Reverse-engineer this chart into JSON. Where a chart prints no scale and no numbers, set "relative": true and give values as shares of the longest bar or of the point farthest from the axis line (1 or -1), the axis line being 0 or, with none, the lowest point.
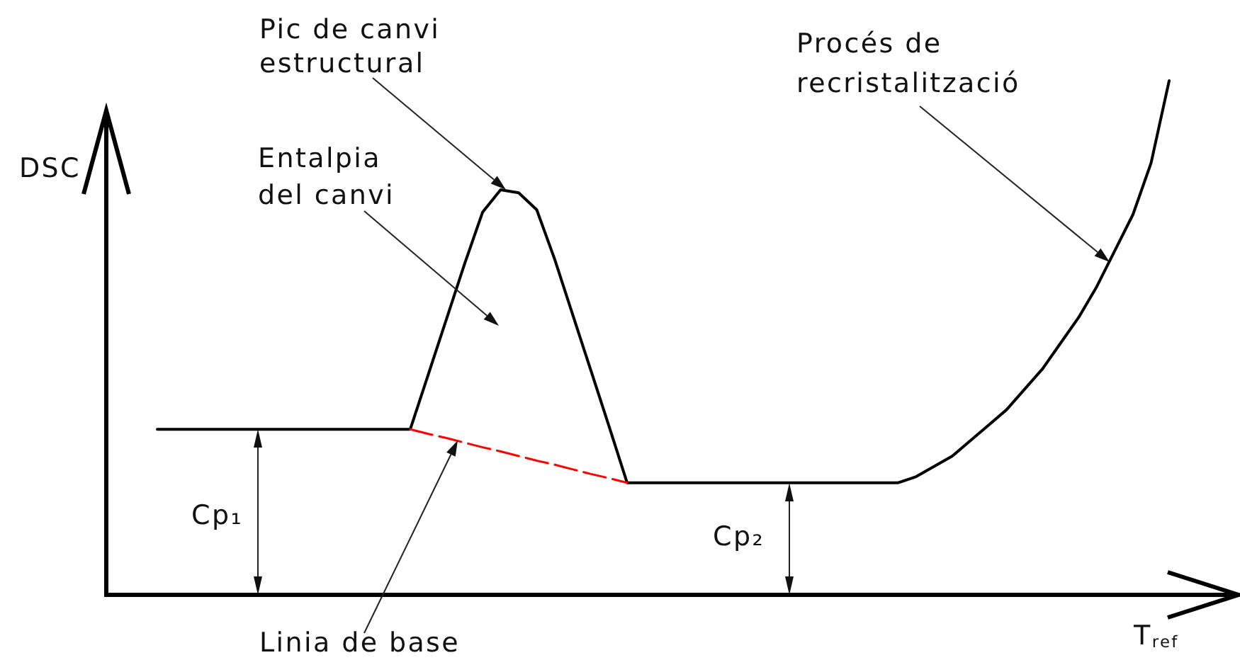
{
  "chart_data": {
    "type": "line",
    "relative": true,
    "xlabel": "T$_{ref}$",
    "ylabel": "DSC",
    "categories": [
      null,
      null,
      null,
      null,
      null,
      null,
      null,
      null,
      null,
      null,
      null,
      null,
      null,
      null,
      null,
      null,
      null,
      null,
      null,
      null,
      null,
      null,
      null,
      null,
      null,
      null,
      null,
      null,
      null,
      null,
      null,
      null,
      null,
      null,
      null,
      null,
      null,
      null,
      null,
      null,
      null,
      null,
      null,
      null,
      null,
      null,
      null,
      null,
      null,
      null,
      null,
      null,
      null,
      null,
      null,
      null,
      null
    ],
    "series": [
      {
        "color": "#000000",
        "values": [
          0.322,
          0.322,
          0.322,
          0.322,
          0.322,
          0.322,
          0.322,
          0.322,
          0.322,
          0.322,
          0.322,
          0.322,
          0.322,
          0.322,
          0.322,
          0.429,
          0.536,
          0.643,
          0.744,
          0.788,
          0.782,
          0.749,
          0.652,
          0.544,
          0.436,
          0.328,
          0.218,
          0.218,
          0.218,
          0.218,
          0.218,
          0.218,
          0.218,
          0.218,
          0.218,
          0.218,
          0.218,
          0.218,
          0.218,
          0.218,
          0.218,
          0.218,
          0.23,
          0.25,
          0.27,
          0.3,
          0.33,
          0.36,
          0.4,
          0.44,
          0.49,
          0.54,
          0.6,
          0.67,
          0.74,
          0.84,
          1
        ]
      },
      {
        "color": "#ff0000",
        "line_style": "dashed",
        "values": [
          null,
          null,
          null,
          null,
          null,
          null,
          null,
          null,
          null,
          null,
          null,
          null,
          null,
          null,
          0.322,
          0.313,
          0.305,
          0.296,
          0.287,
          0.279,
          0.27,
          0.261,
          0.253,
          0.244,
          0.235,
          0.227,
          0.218,
          null,
          null,
          null,
          null,
          null,
          null,
          null,
          null,
          null,
          null,
          null,
          null,
          null,
          null,
          null,
          null,
          null,
          null,
          null,
          null,
          null,
          null,
          null,
          null,
          null,
          null,
          null,
          null,
          null,
          null
        ]
      }
    ],
    "annotations": [
      "Pic de canvi\nestructural",
      "Entalpia\ndel canvi",
      "Procés de\nrecristalització",
      "Linia de base",
      "Cp₁",
      "Cp₂"
    ]
  }
}
